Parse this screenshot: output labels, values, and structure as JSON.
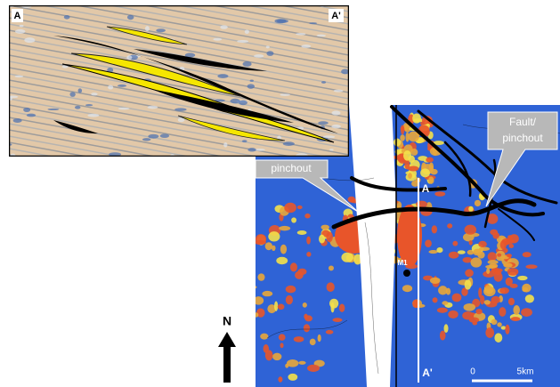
{
  "section": {
    "label_left": "A",
    "label_right": "A'"
  },
  "map": {
    "callouts": [
      {
        "lines": [
          "pinchout"
        ]
      },
      {
        "lines": [
          "Fault/",
          "pinchout"
        ]
      }
    ],
    "line_start": "A",
    "line_end": "A'",
    "well": "M1",
    "scale": {
      "start": "0",
      "end": "5km"
    }
  },
  "north": "N"
}
